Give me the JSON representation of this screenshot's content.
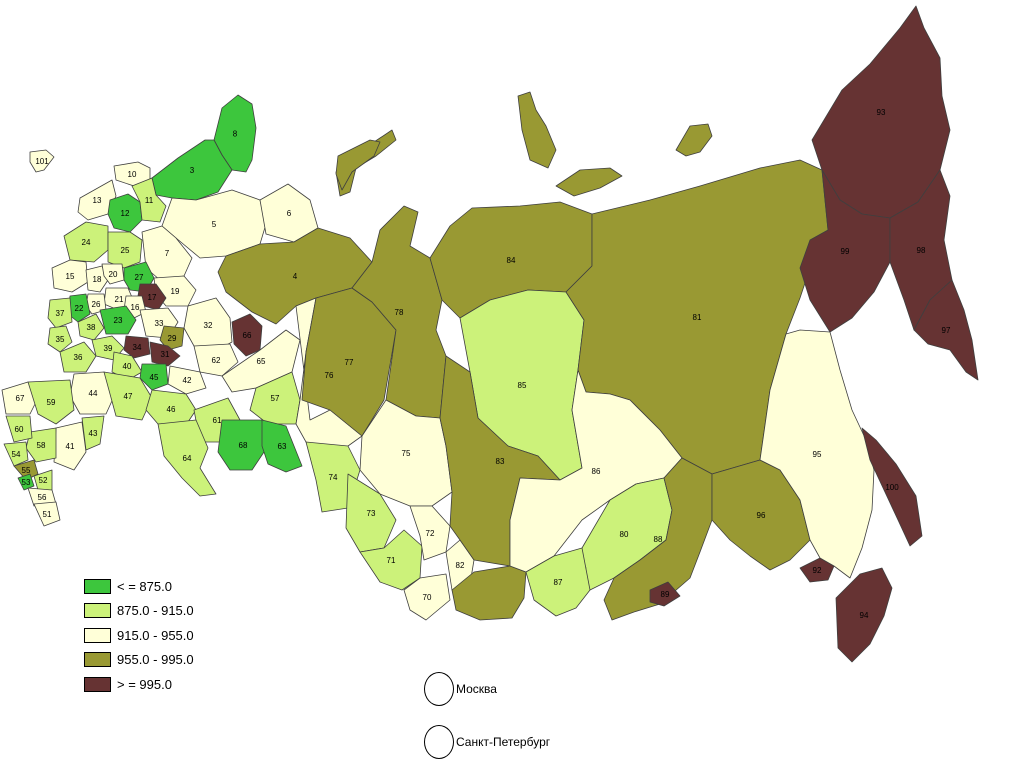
{
  "legend": {
    "items": [
      {
        "label": "< = 875.0",
        "color": "#3dc63d"
      },
      {
        "label": "875.0 - 915.0",
        "color": "#ccf27a"
      },
      {
        "label": "915.0 - 955.0",
        "color": "#ffffd8"
      },
      {
        "label": "955.0 - 995.0",
        "color": "#999933"
      },
      {
        "label": "> = 995.0",
        "color": "#663333"
      }
    ]
  },
  "cities": [
    {
      "id": "moscow",
      "label": "Москва"
    },
    {
      "id": "spb",
      "label": "Санкт-Петербург"
    }
  ],
  "regions": [
    {
      "id": "101",
      "class": 2
    },
    {
      "id": "10",
      "class": 2
    },
    {
      "id": "3",
      "class": 0
    },
    {
      "id": "8",
      "class": 0
    },
    {
      "id": "13",
      "class": 2
    },
    {
      "id": "12",
      "class": 0
    },
    {
      "id": "11",
      "class": 1
    },
    {
      "id": "5",
      "class": 2
    },
    {
      "id": "6",
      "class": 2
    },
    {
      "id": "24",
      "class": 1
    },
    {
      "id": "25",
      "class": 1
    },
    {
      "id": "7",
      "class": 2
    },
    {
      "id": "4",
      "class": 3
    },
    {
      "id": "15",
      "class": 2
    },
    {
      "id": "18",
      "class": 2
    },
    {
      "id": "20",
      "class": 2
    },
    {
      "id": "27",
      "class": 0
    },
    {
      "id": "19",
      "class": 2
    },
    {
      "id": "17",
      "class": 4
    },
    {
      "id": "21",
      "class": 2
    },
    {
      "id": "26",
      "class": 2
    },
    {
      "id": "16",
      "class": 2
    },
    {
      "id": "22",
      "class": 0
    },
    {
      "id": "37",
      "class": 1
    },
    {
      "id": "38",
      "class": 1
    },
    {
      "id": "23",
      "class": 0
    },
    {
      "id": "33",
      "class": 2
    },
    {
      "id": "34",
      "class": 4
    },
    {
      "id": "29",
      "class": 3
    },
    {
      "id": "31",
      "class": 4
    },
    {
      "id": "32",
      "class": 2
    },
    {
      "id": "66",
      "class": 4
    },
    {
      "id": "35",
      "class": 1
    },
    {
      "id": "39",
      "class": 1
    },
    {
      "id": "36",
      "class": 1
    },
    {
      "id": "40",
      "class": 1
    },
    {
      "id": "62",
      "class": 2
    },
    {
      "id": "42",
      "class": 2
    },
    {
      "id": "65",
      "class": 2
    },
    {
      "id": "45",
      "class": 0
    },
    {
      "id": "44",
      "class": 2
    },
    {
      "id": "47",
      "class": 1
    },
    {
      "id": "46",
      "class": 1
    },
    {
      "id": "57",
      "class": 1
    },
    {
      "id": "59",
      "class": 1
    },
    {
      "id": "67",
      "class": 2
    },
    {
      "id": "61",
      "class": 1
    },
    {
      "id": "68",
      "class": 0
    },
    {
      "id": "63",
      "class": 0
    },
    {
      "id": "64",
      "class": 1
    },
    {
      "id": "43",
      "class": 1
    },
    {
      "id": "41",
      "class": 2
    },
    {
      "id": "58",
      "class": 1
    },
    {
      "id": "60",
      "class": 1
    },
    {
      "id": "54",
      "class": 1
    },
    {
      "id": "55",
      "class": 3
    },
    {
      "id": "53",
      "class": 0
    },
    {
      "id": "52",
      "class": 1
    },
    {
      "id": "56",
      "class": 2
    },
    {
      "id": "51",
      "class": 2
    },
    {
      "id": "76",
      "class": 2
    },
    {
      "id": "77",
      "class": 3
    },
    {
      "id": "78",
      "class": 3
    },
    {
      "id": "84",
      "class": 3
    },
    {
      "id": "81",
      "class": 3
    },
    {
      "id": "85",
      "class": 1
    },
    {
      "id": "74",
      "class": 1
    },
    {
      "id": "75",
      "class": 2
    },
    {
      "id": "73",
      "class": 1
    },
    {
      "id": "71",
      "class": 1
    },
    {
      "id": "72",
      "class": 2
    },
    {
      "id": "83",
      "class": 3
    },
    {
      "id": "86",
      "class": 2
    },
    {
      "id": "80",
      "class": 1
    },
    {
      "id": "87",
      "class": 1
    },
    {
      "id": "82",
      "class": 2
    },
    {
      "id": "70",
      "class": 2
    },
    {
      "id": "88",
      "class": 3
    },
    {
      "id": "89",
      "class": 4
    },
    {
      "id": "96",
      "class": 3
    },
    {
      "id": "92",
      "class": 4
    },
    {
      "id": "95",
      "class": 2
    },
    {
      "id": "94",
      "class": 4
    },
    {
      "id": "100",
      "class": 4
    },
    {
      "id": "93",
      "class": 4
    },
    {
      "id": "99",
      "class": 4
    },
    {
      "id": "98",
      "class": 4
    },
    {
      "id": "97",
      "class": 4
    }
  ]
}
